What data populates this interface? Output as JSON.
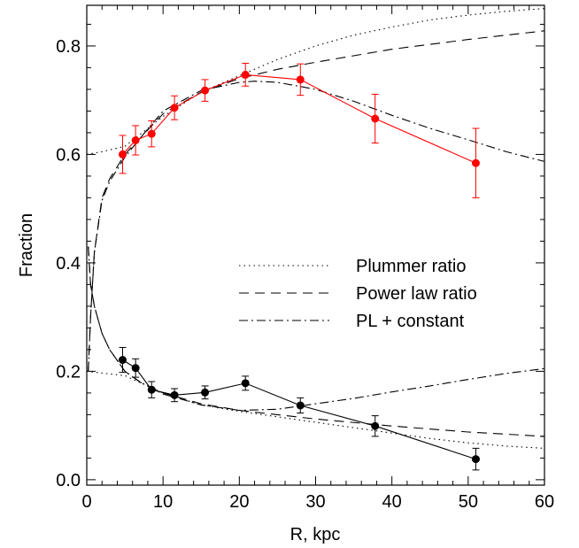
{
  "chart_data": {
    "type": "line",
    "title": "",
    "xlabel": "R, kpc",
    "ylabel": "Fraction",
    "xlim": [
      0,
      60
    ],
    "ylim": [
      -0.01,
      0.875
    ],
    "xticks": [
      0,
      10,
      20,
      30,
      40,
      50,
      60
    ],
    "xtick_labels": [
      "0",
      "10",
      "20",
      "30",
      "40",
      "50",
      "60"
    ],
    "yticks": [
      0.0,
      0.2,
      0.4,
      0.6,
      0.8
    ],
    "ytick_labels": [
      "0.0",
      "0.2",
      "0.4",
      "0.6",
      "0.8"
    ],
    "grid": false,
    "legend_position": "middle-right",
    "data_series": [
      {
        "color": "#ff0000",
        "x": [
          4.7,
          6.4,
          8.5,
          11.5,
          15.5,
          20.8,
          28.0,
          37.8,
          51.0
        ],
        "y": [
          0.6,
          0.626,
          0.638,
          0.686,
          0.718,
          0.747,
          0.738,
          0.666,
          0.584
        ],
        "yerr": [
          0.035,
          0.027,
          0.024,
          0.022,
          0.02,
          0.021,
          0.029,
          0.045,
          0.064
        ]
      },
      {
        "color": "#000000",
        "x": [
          4.7,
          6.4,
          8.5,
          11.5,
          15.5,
          20.8,
          28.0,
          37.8,
          51.0
        ],
        "y": [
          0.221,
          0.206,
          0.166,
          0.156,
          0.161,
          0.178,
          0.137,
          0.099,
          0.038
        ],
        "yerr": [
          0.023,
          0.017,
          0.015,
          0.012,
          0.012,
          0.013,
          0.014,
          0.019,
          0.02
        ]
      }
    ],
    "model_curves": [
      {
        "name": "Plummer ratio",
        "dash": "dotted",
        "upper": {
          "x": [
            0,
            2,
            5,
            10,
            15,
            20,
            25,
            30,
            35,
            40,
            45,
            50,
            55,
            60
          ],
          "y": [
            0.6,
            0.605,
            0.615,
            0.67,
            0.715,
            0.745,
            0.775,
            0.8,
            0.82,
            0.835,
            0.848,
            0.857,
            0.864,
            0.869
          ]
        },
        "lower": {
          "x": [
            0,
            5,
            10,
            15,
            20,
            25,
            30,
            35,
            40,
            45,
            50,
            55,
            60
          ],
          "y": [
            0.2,
            0.192,
            0.16,
            0.138,
            0.126,
            0.116,
            0.106,
            0.096,
            0.086,
            0.076,
            0.068,
            0.062,
            0.058
          ]
        }
      },
      {
        "name": "Power law ratio",
        "dash": "dashed",
        "upper": {
          "x": [
            0.2,
            0.5,
            1,
            2,
            3,
            5,
            7,
            10,
            15,
            20,
            25,
            30,
            40,
            50,
            60
          ],
          "y": [
            0.2,
            0.3,
            0.42,
            0.52,
            0.555,
            0.6,
            0.63,
            0.675,
            0.715,
            0.74,
            0.757,
            0.77,
            0.794,
            0.812,
            0.828
          ]
        },
        "lower": {
          "x": [
            0.2,
            0.5,
            1,
            2,
            3,
            5,
            7,
            10,
            15,
            20,
            25,
            30,
            40,
            50,
            60
          ],
          "y": [
            0.43,
            0.36,
            0.32,
            0.27,
            0.24,
            0.2,
            0.18,
            0.16,
            0.14,
            0.128,
            0.12,
            0.112,
            0.099,
            0.088,
            0.08
          ]
        }
      },
      {
        "name": "PL + constant",
        "dash": "dashdot",
        "upper": {
          "x": [
            0.2,
            0.5,
            1,
            2,
            3,
            5,
            7,
            10,
            15,
            20,
            22,
            25,
            30,
            35,
            40,
            45,
            50,
            55,
            60
          ],
          "y": [
            0.2,
            0.3,
            0.42,
            0.515,
            0.55,
            0.595,
            0.63,
            0.68,
            0.718,
            0.733,
            0.735,
            0.733,
            0.72,
            0.698,
            0.672,
            0.648,
            0.627,
            0.605,
            0.587
          ]
        },
        "lower": {
          "x": [
            0.2,
            0.5,
            1,
            2,
            3,
            5,
            7,
            10,
            15,
            20,
            25,
            30,
            35,
            40,
            45,
            50,
            55,
            60
          ],
          "y": [
            0.43,
            0.36,
            0.32,
            0.27,
            0.24,
            0.2,
            0.18,
            0.158,
            0.138,
            0.128,
            0.13,
            0.14,
            0.15,
            0.162,
            0.173,
            0.185,
            0.196,
            0.205
          ]
        }
      }
    ],
    "legend": [
      {
        "label": "Plummer ratio",
        "dash": "dotted"
      },
      {
        "label": "Power law ratio",
        "dash": "dashed"
      },
      {
        "label": "PL + constant",
        "dash": "dashdot"
      }
    ]
  }
}
